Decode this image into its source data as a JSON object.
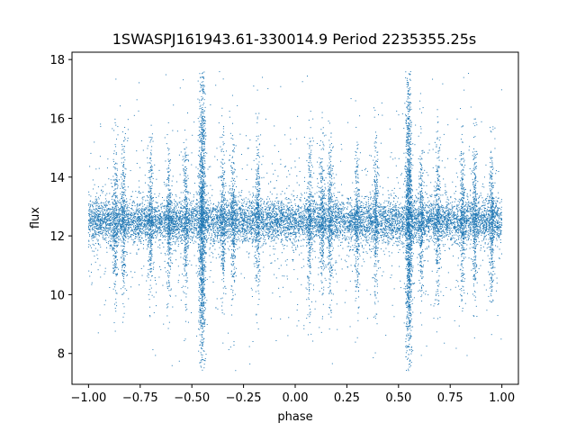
{
  "chart_data": {
    "type": "scatter",
    "title": "1SWASPJ161943.61-330014.9 Period 2235355.25s",
    "xlabel": "phase",
    "ylabel": "flux",
    "xlim": [
      -1.08,
      1.08
    ],
    "ylim": [
      6.95,
      18.25
    ],
    "xticks": [
      -1.0,
      -0.75,
      -0.5,
      -0.25,
      0.0,
      0.25,
      0.5,
      0.75,
      1.0
    ],
    "xtick_labels": [
      "−1.00",
      "−0.75",
      "−0.50",
      "−0.25",
      "0.00",
      "0.25",
      "0.50",
      "0.75",
      "1.00"
    ],
    "yticks": [
      8,
      10,
      12,
      14,
      16,
      18
    ],
    "ytick_labels": [
      "8",
      "10",
      "12",
      "14",
      "16",
      "18"
    ],
    "grid": false,
    "series": [
      {
        "color": "#1f77b4",
        "marker_size": 1,
        "baseline_flux": 12.5,
        "typical_spread": 0.35,
        "phase_range": [
          -1.0,
          1.0
        ],
        "note_values": {
          "main_band": [
            12.0,
            13.2
          ],
          "max_flux": 17.6,
          "min_flux": 7.4,
          "dense_spike_phases": [
            -0.45,
            0.55
          ],
          "secondary_spike_phases": [
            -0.87,
            -0.83,
            -0.7,
            -0.61,
            -0.53,
            -0.35,
            -0.3,
            -0.18,
            0.07,
            0.13,
            0.17,
            0.3,
            0.39,
            0.61,
            0.69,
            0.81,
            0.87,
            0.95
          ]
        }
      }
    ]
  }
}
